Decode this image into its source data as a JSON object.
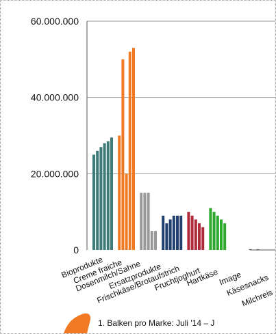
{
  "chart_data": {
    "type": "bar",
    "title": "",
    "xlabel": "",
    "ylabel": "",
    "ylim": [
      0,
      60000000
    ],
    "yticks": [
      0,
      20000000,
      40000000,
      60000000
    ],
    "ytick_labels": [
      "0",
      "20.000.000",
      "40.000.000",
      "60.000.000"
    ],
    "grid": true,
    "categories": [
      {
        "label": "Bioprodukte",
        "color": "#3d7a78",
        "values": [
          25000000,
          26000000,
          27000000,
          28000000,
          28500000,
          29500000
        ]
      },
      {
        "label": "Creme fraiche",
        "color": "#f07a24",
        "values": [
          30000000,
          50000000,
          20000000,
          52000000,
          53000000
        ]
      },
      {
        "label": "Dosenmilch/Sahne",
        "color": "#999999",
        "values": [
          15000000,
          15000000,
          15000000,
          5000000,
          5000000
        ]
      },
      {
        "label": "Ersatzprodukte",
        "color": "#1f3f6e",
        "values": [
          9000000,
          7000000,
          8000000,
          9000000,
          9000000,
          9000000
        ]
      },
      {
        "label": "Frischkäse/Brotaufstrich",
        "color": "#b02a3c",
        "values": [
          10000000,
          9000000,
          8000000,
          7000000,
          6000000
        ]
      },
      {
        "label": "Fruchtjoghurt",
        "color": "#2ca82c",
        "values": [
          11000000,
          10000000,
          9000000,
          8000000,
          7000000
        ]
      },
      {
        "label": "Hartkäse",
        "color": "#2ca82c",
        "values": []
      },
      {
        "label": "Image",
        "color": "#555555",
        "values": [
          200000
        ]
      },
      {
        "label": "Käsesnacks",
        "color": "#555555",
        "values": [
          200000
        ]
      },
      {
        "label": "Milchreis",
        "color": "#555555",
        "values": []
      }
    ],
    "annotation": "1. Balken pro Marke: Juli '14 – J"
  },
  "colors": {
    "axis": "#555555",
    "grid": "#9a9a9a",
    "pointer": "#f07a24"
  }
}
